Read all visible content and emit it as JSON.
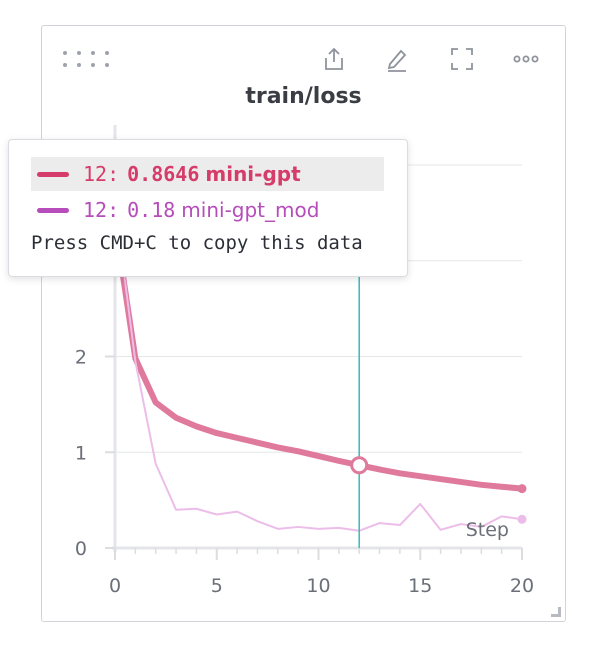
{
  "panel": {
    "title": "train/loss",
    "toolbar": [
      {
        "name": "export-icon"
      },
      {
        "name": "edit-pencil-icon"
      },
      {
        "name": "fullscreen-icon"
      },
      {
        "name": "more-options-icon"
      }
    ]
  },
  "chart_data": {
    "type": "line",
    "title": "train/loss",
    "xlabel": "Step",
    "ylabel": "",
    "xlim": [
      0,
      20
    ],
    "ylim": [
      0,
      4
    ],
    "x_ticks": [
      0,
      5,
      10,
      15,
      20
    ],
    "y_ticks": [
      0,
      1,
      2
    ],
    "grid": true,
    "series": [
      {
        "name": "mini-gpt",
        "color": "#e07a9c",
        "x": [
          0,
          1,
          2,
          3,
          4,
          5,
          6,
          7,
          8,
          9,
          10,
          11,
          12,
          13,
          14,
          15,
          16,
          17,
          18,
          19,
          20
        ],
        "values": [
          3.4,
          1.98,
          1.52,
          1.36,
          1.27,
          1.2,
          1.15,
          1.1,
          1.05,
          1.01,
          0.96,
          0.91,
          0.8646,
          0.82,
          0.78,
          0.75,
          0.72,
          0.69,
          0.66,
          0.64,
          0.62
        ]
      },
      {
        "name": "mini-gpt_mod",
        "color": "#ecbde8",
        "x": [
          0,
          1,
          2,
          3,
          4,
          5,
          6,
          7,
          8,
          9,
          10,
          11,
          12,
          13,
          14,
          15,
          16,
          17,
          18,
          19,
          20
        ],
        "values": [
          3.6,
          1.95,
          0.88,
          0.4,
          0.41,
          0.35,
          0.38,
          0.28,
          0.2,
          0.22,
          0.2,
          0.21,
          0.18,
          0.26,
          0.24,
          0.46,
          0.19,
          0.25,
          0.22,
          0.33,
          0.3
        ]
      }
    ],
    "hover": {
      "step": 12
    }
  },
  "tooltip": {
    "rows": [
      {
        "step": "12:",
        "value": "0.8646",
        "name": "mini-gpt",
        "color": "#d63c6a",
        "highlighted": true
      },
      {
        "step": "12:",
        "value": "0.18",
        "name": "mini-gpt_mod",
        "color": "#b64dbb",
        "highlighted": false
      }
    ],
    "note": "Press CMD+C to copy this data"
  }
}
